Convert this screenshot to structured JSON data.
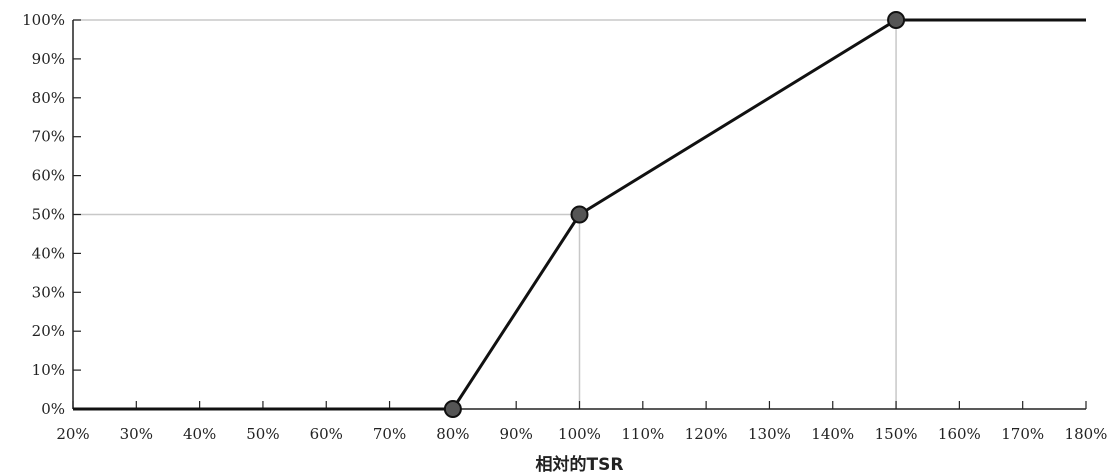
{
  "chart_data": {
    "type": "line",
    "title": "",
    "xlabel": "相対的TSR",
    "ylabel": "",
    "x_ticks": [
      "20%",
      "30%",
      "40%",
      "50%",
      "60%",
      "70%",
      "80%",
      "90%",
      "100%",
      "110%",
      "120%",
      "130%",
      "140%",
      "150%",
      "160%",
      "170%",
      "180%"
    ],
    "y_ticks": [
      "0%",
      "10%",
      "20%",
      "30%",
      "40%",
      "50%",
      "60%",
      "70%",
      "80%",
      "90%",
      "100%"
    ],
    "xlim": [
      20,
      180
    ],
    "ylim": [
      0,
      100
    ],
    "grid": false,
    "series": [
      {
        "x": [
          20,
          80,
          100,
          150,
          180
        ],
        "y": [
          0,
          0,
          50,
          100,
          100
        ],
        "color": "#111111"
      }
    ],
    "markers": [
      {
        "x": 80,
        "y": 0
      },
      {
        "x": 100,
        "y": 50
      },
      {
        "x": 150,
        "y": 100
      }
    ],
    "reference_lines": [
      {
        "x": 100,
        "y": 50
      },
      {
        "x": 150,
        "y": 100
      }
    ],
    "colors": {
      "line": "#111111",
      "marker_fill": "#555555",
      "axis": "#222222",
      "reference": "#c8c8c8"
    }
  }
}
